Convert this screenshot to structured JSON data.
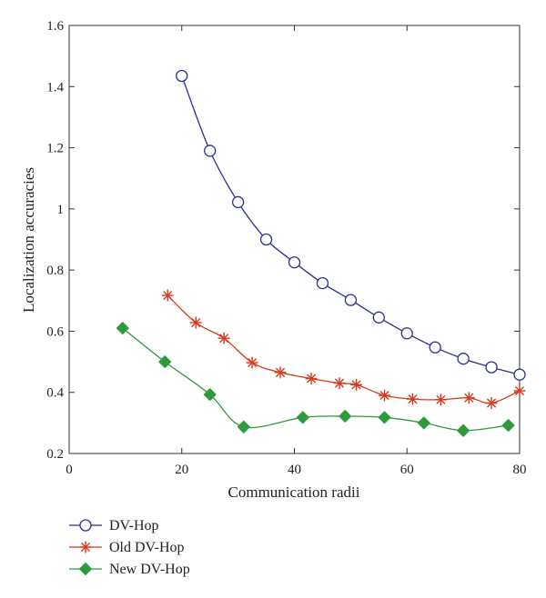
{
  "chart_data": {
    "type": "line",
    "title": "",
    "xlabel": "Communication radii",
    "ylabel": "Localization accuracies",
    "xlim": [
      0,
      80
    ],
    "ylim": [
      0.2,
      1.6
    ],
    "xticks": [
      0,
      20,
      40,
      60,
      80
    ],
    "yticks": [
      0.2,
      0.4,
      0.6,
      0.8,
      1,
      1.2,
      1.4,
      1.6
    ],
    "xtick_labels": [
      "0",
      "20",
      "40",
      "60",
      "80"
    ],
    "ytick_labels": [
      "0.2",
      "0.4",
      "0.6",
      "0.8",
      "1",
      "1.2",
      "1.4",
      "1.6"
    ],
    "grid": false,
    "legend_position": "bottom-left, below plot",
    "series": [
      {
        "name": "DV-Hop",
        "color": "#2e2e8f",
        "marker": "circle",
        "x": [
          20,
          25,
          30,
          35,
          40,
          45,
          50,
          55,
          60,
          65,
          70,
          75,
          80
        ],
        "y": [
          1.435,
          1.19,
          1.022,
          0.9,
          0.825,
          0.757,
          0.702,
          0.645,
          0.593,
          0.547,
          0.51,
          0.482,
          0.458
        ]
      },
      {
        "name": "Old DV-Hop",
        "color": "#d8381e",
        "marker": "asterisk",
        "x": [
          17.5,
          22.5,
          27.5,
          32.5,
          37.5,
          43,
          48,
          51,
          56,
          61,
          66,
          71,
          75,
          80
        ],
        "y": [
          0.717,
          0.628,
          0.577,
          0.497,
          0.465,
          0.445,
          0.43,
          0.425,
          0.39,
          0.378,
          0.376,
          0.382,
          0.365,
          0.405
        ]
      },
      {
        "name": "New DV-Hop",
        "color": "#2e9a3c",
        "marker": "diamond",
        "x": [
          9.5,
          17,
          25,
          31,
          41.5,
          49,
          56,
          63,
          70,
          78
        ],
        "y": [
          0.61,
          0.5,
          0.393,
          0.287,
          0.318,
          0.322,
          0.318,
          0.3,
          0.275,
          0.292
        ]
      }
    ]
  }
}
